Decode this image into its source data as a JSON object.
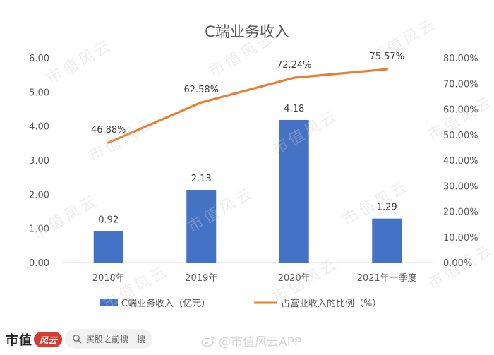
{
  "chart_data": {
    "type": "bar+line",
    "title": "C端业务收入",
    "categories": [
      "2018年",
      "2019年",
      "2020年",
      "2021年一季度"
    ],
    "series": [
      {
        "name": "C端业务收入（亿元）",
        "type": "bar",
        "axis": "left",
        "values": [
          0.92,
          2.13,
          4.18,
          1.29
        ],
        "labels": [
          "0.92",
          "2.13",
          "4.18",
          "1.29"
        ],
        "color": "#4472c4"
      },
      {
        "name": "占营业收入的比例（%）",
        "type": "line",
        "axis": "right",
        "values": [
          46.88,
          62.58,
          72.24,
          75.57
        ],
        "labels": [
          "46.88%",
          "62.58%",
          "72.24%",
          "75.57%"
        ],
        "color": "#ed7d31"
      }
    ],
    "left_axis": {
      "range": [
        0,
        6
      ],
      "ticks": [
        "0.00",
        "1.00",
        "2.00",
        "3.00",
        "4.00",
        "5.00",
        "6.00"
      ]
    },
    "right_axis": {
      "range": [
        0,
        80
      ],
      "ticks": [
        "0.00%",
        "10.00%",
        "20.00%",
        "30.00%",
        "40.00%",
        "50.00%",
        "60.00%",
        "70.00%",
        "80.00%"
      ]
    },
    "grid": false,
    "legend_position": "bottom"
  },
  "watermark": "市值风云",
  "footer": {
    "brand_name": "市值",
    "brand_seal_text": "风云",
    "search_placeholder": "买股之前搜一搜",
    "credit_text": "@市值风云APP"
  },
  "colors": {
    "bar": "#4472c4",
    "line": "#ed7d31",
    "axis_text": "#595959",
    "title_text": "#595959"
  }
}
